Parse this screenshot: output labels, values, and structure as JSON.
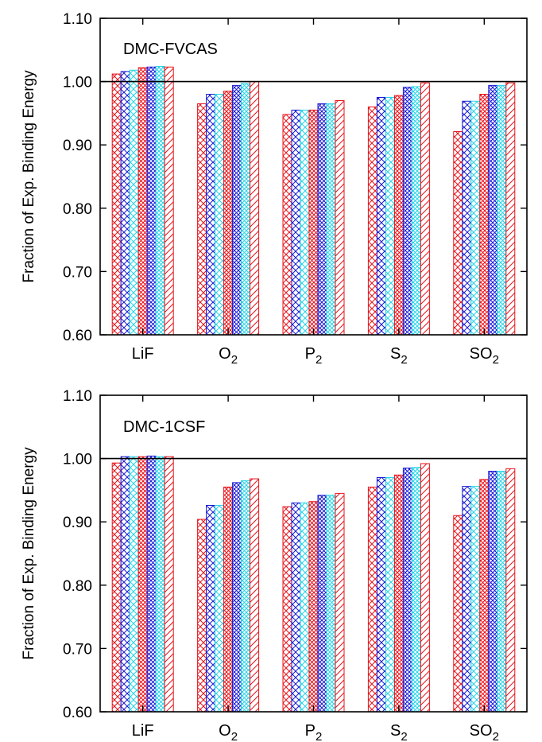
{
  "figure": {
    "ylabel": "Fraction of Exp. Binding Energy",
    "colors": [
      "#e8131a",
      "#1a1ad6",
      "#2ad4e6"
    ]
  },
  "chart_data": [
    {
      "type": "bar",
      "title": "DMC-FVCAS",
      "ylabel": "Fraction of Exp. Binding Energy",
      "ylim": [
        0.6,
        1.1
      ],
      "yticks": [
        "0.60",
        "0.70",
        "0.80",
        "0.90",
        "1.00",
        "1.10"
      ],
      "reference_line": 1.0,
      "categories": [
        {
          "base": "LiF",
          "sub": ""
        },
        {
          "base": "O",
          "sub": "2"
        },
        {
          "base": "P",
          "sub": "2"
        },
        {
          "base": "S",
          "sub": "2"
        },
        {
          "base": "SO",
          "sub": "2"
        }
      ],
      "bar_styles": [
        {
          "color": "#e8131a",
          "pattern": "cross"
        },
        {
          "color": "#1a1ad6",
          "pattern": "cross"
        },
        {
          "color": "#2ad4e6",
          "pattern": "cross"
        },
        {
          "color": "#e8131a",
          "pattern": "dense"
        },
        {
          "color": "#1a1ad6",
          "pattern": "dense"
        },
        {
          "color": "#2ad4e6",
          "pattern": "dense"
        },
        {
          "color": "#e8131a",
          "pattern": "diag"
        }
      ],
      "values": [
        [
          1.012,
          1.016,
          1.018,
          1.022,
          1.023,
          1.024,
          1.023
        ],
        [
          0.965,
          0.98,
          0.98,
          0.985,
          0.994,
          0.997,
          1.0
        ],
        [
          0.948,
          0.955,
          0.955,
          0.955,
          0.965,
          0.965,
          0.97
        ],
        [
          0.96,
          0.975,
          0.975,
          0.978,
          0.991,
          0.992,
          0.998
        ],
        [
          0.921,
          0.969,
          0.969,
          0.98,
          0.994,
          0.994,
          0.998
        ]
      ]
    },
    {
      "type": "bar",
      "title": "DMC-1CSF",
      "ylabel": "Fraction of Exp. Binding Energy",
      "ylim": [
        0.6,
        1.1
      ],
      "yticks": [
        "0.60",
        "0.70",
        "0.80",
        "0.90",
        "1.00",
        "1.10"
      ],
      "reference_line": 1.0,
      "categories": [
        {
          "base": "LiF",
          "sub": ""
        },
        {
          "base": "O",
          "sub": "2"
        },
        {
          "base": "P",
          "sub": "2"
        },
        {
          "base": "S",
          "sub": "2"
        },
        {
          "base": "SO",
          "sub": "2"
        }
      ],
      "bar_styles": [
        {
          "color": "#e8131a",
          "pattern": "cross"
        },
        {
          "color": "#1a1ad6",
          "pattern": "cross"
        },
        {
          "color": "#2ad4e6",
          "pattern": "cross"
        },
        {
          "color": "#e8131a",
          "pattern": "dense"
        },
        {
          "color": "#1a1ad6",
          "pattern": "dense"
        },
        {
          "color": "#2ad4e6",
          "pattern": "dense"
        },
        {
          "color": "#e8131a",
          "pattern": "diag"
        }
      ],
      "values": [
        [
          0.993,
          1.003,
          1.003,
          1.003,
          1.004,
          1.003,
          1.003
        ],
        [
          0.904,
          0.926,
          0.926,
          0.955,
          0.962,
          0.965,
          0.968
        ],
        [
          0.924,
          0.93,
          0.93,
          0.932,
          0.942,
          0.942,
          0.945
        ],
        [
          0.955,
          0.97,
          0.97,
          0.974,
          0.985,
          0.986,
          0.992
        ],
        [
          0.91,
          0.956,
          0.956,
          0.967,
          0.98,
          0.98,
          0.984
        ]
      ]
    }
  ]
}
